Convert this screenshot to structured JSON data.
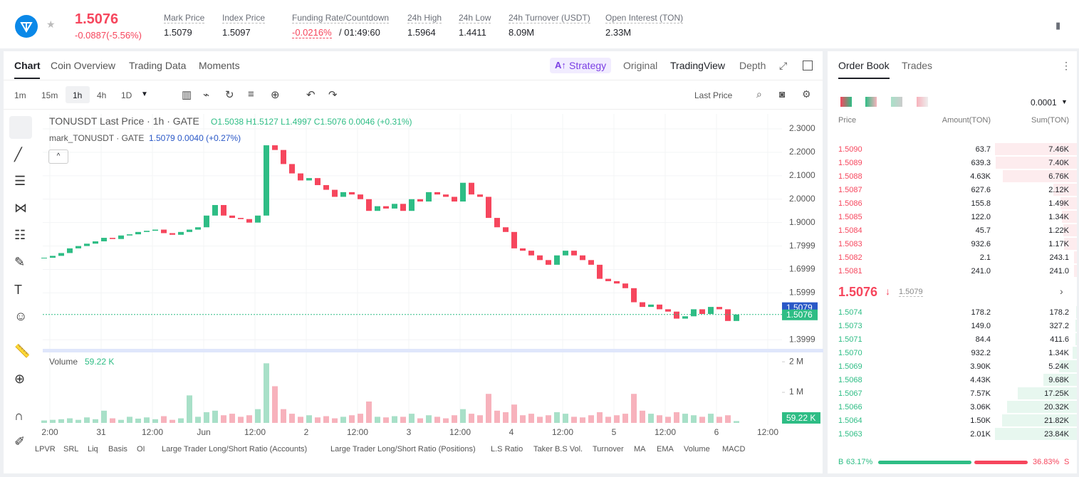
{
  "header": {
    "price": "1.5076",
    "change": "-0.0887(-5.56%)",
    "stats": [
      {
        "label": "Mark Price",
        "value": "1.5079"
      },
      {
        "label": "Index Price",
        "value": "1.5097"
      },
      {
        "label": "Funding Rate/Countdown",
        "value": "-0.0216%",
        "value2": "/ 01:49:60"
      },
      {
        "label": "24h High",
        "value": "1.5964"
      },
      {
        "label": "24h Low",
        "value": "1.4411"
      },
      {
        "label": "24h Turnover (USDT)",
        "value": "8.09M"
      },
      {
        "label": "Open Interest (TON)",
        "value": "2.33M"
      }
    ]
  },
  "tabs": [
    "Chart",
    "Coin Overview",
    "Trading Data",
    "Moments"
  ],
  "view_tabs": [
    "Strategy",
    "Original",
    "TradingView",
    "Depth"
  ],
  "intervals": [
    "1m",
    "15m",
    "1h",
    "4h",
    "1D"
  ],
  "price_source": "Last Price",
  "legend": {
    "main": "TONUSDT Last Price · 1h · GATE",
    "ohlc": "O1.5038 H1.5127 L1.4997 C1.5076 0.0046 (+0.31%)",
    "mark": "mark_TONUSDT · GATE",
    "mark_values": "1.5079 0.0040 (+0.27%)"
  },
  "chart_data": [
    {
      "type": "candlestick",
      "x_labels": [
        "2:00",
        "31",
        "12:00",
        "Jun",
        "12:00",
        "2",
        "12:00",
        "3",
        "12:00",
        "4",
        "12:00",
        "5",
        "12:00",
        "6",
        "12:00"
      ],
      "values": [
        1.75,
        1.758,
        1.77,
        1.79,
        1.8,
        1.81,
        1.82,
        1.835,
        1.83,
        1.845,
        1.85,
        1.86,
        1.865,
        1.87,
        1.855,
        1.848,
        1.86,
        1.87,
        1.88,
        1.93,
        1.975,
        1.93,
        1.92,
        1.915,
        1.9,
        1.93,
        2.23,
        2.21,
        2.15,
        2.11,
        2.08,
        2.09,
        2.06,
        2.04,
        2.01,
        2.03,
        2.02,
        2.0,
        1.95,
        1.97,
        1.96,
        1.98,
        1.95,
        2.0,
        1.99,
        2.03,
        2.02,
        2.01,
        1.99,
        2.07,
        2.02,
        2.01,
        1.92,
        1.88,
        1.86,
        1.79,
        1.78,
        1.76,
        1.74,
        1.72,
        1.76,
        1.78,
        1.76,
        1.74,
        1.72,
        1.66,
        1.65,
        1.64,
        1.62,
        1.56,
        1.54,
        1.55,
        1.53,
        1.52,
        1.49,
        1.5,
        1.53,
        1.51,
        1.54,
        1.53,
        1.48,
        1.5076
      ],
      "up_color": "#2ebd85",
      "down_color": "#f6465d",
      "ylim": [
        1.361,
        2.364
      ],
      "yticks": [
        {
          "value": 2.3,
          "label": "2.3000"
        },
        {
          "value": 2.2,
          "label": "2.2000"
        },
        {
          "value": 2.1,
          "label": "2.1000"
        },
        {
          "value": 2.0,
          "label": "2.0000"
        },
        {
          "value": 1.9,
          "label": "1.9000"
        },
        1.7999,
        1.6999,
        1.5999,
        1.3999
      ],
      "mark_price": 1.5079,
      "last_price": 1.5076
    },
    {
      "type": "bar",
      "title": "Volume",
      "volume_label": "59.22 K",
      "values": [
        0.08,
        0.1,
        0.12,
        0.15,
        0.1,
        0.18,
        0.12,
        0.4,
        0.15,
        0.1,
        0.2,
        0.14,
        0.18,
        0.12,
        0.22,
        0.1,
        0.15,
        0.9,
        0.2,
        0.35,
        0.4,
        0.25,
        0.3,
        0.2,
        0.25,
        0.45,
        1.95,
        1.2,
        0.45,
        0.3,
        0.2,
        0.25,
        0.18,
        0.22,
        0.15,
        0.2,
        0.25,
        0.3,
        0.7,
        0.2,
        0.18,
        0.22,
        0.2,
        0.3,
        0.15,
        0.25,
        0.2,
        0.15,
        0.25,
        0.45,
        0.3,
        0.25,
        0.95,
        0.4,
        0.35,
        0.6,
        0.25,
        0.3,
        0.2,
        0.25,
        0.35,
        0.3,
        0.2,
        0.18,
        0.25,
        0.35,
        0.2,
        0.25,
        0.3,
        0.95,
        0.4,
        0.3,
        0.25,
        0.2,
        0.35,
        0.3,
        0.25,
        0.2,
        0.3,
        0.2,
        0.25,
        0.05922
      ],
      "ylim": [
        0,
        2.19
      ],
      "yticks": [
        {
          "value": 2,
          "label": "2 M"
        },
        {
          "value": 1,
          "label": "1 M"
        }
      ]
    }
  ],
  "indicators": [
    "LPVR",
    "SRL",
    "Liq",
    "Basis",
    "OI",
    "Large Trader Long/Short Ratio (Accounts)",
    "Large Trader Long/Short Ratio (Positions)",
    "L.S Ratio",
    "Taker B.S Vol.",
    "Turnover",
    "MA",
    "EMA",
    "Volume",
    "MACD"
  ],
  "order_book": {
    "tabs": [
      "Order Book",
      "Trades"
    ],
    "precision": "0.0001",
    "headers": [
      "Price",
      "Amount(TON)",
      "Sum(TON)"
    ],
    "asks": [
      [
        "1.5090",
        "63.7",
        "7.46K"
      ],
      [
        "1.5089",
        "639.3",
        "7.40K"
      ],
      [
        "1.5088",
        "4.63K",
        "6.76K"
      ],
      [
        "1.5087",
        "627.6",
        "2.12K"
      ],
      [
        "1.5086",
        "155.8",
        "1.49K"
      ],
      [
        "1.5085",
        "122.0",
        "1.34K"
      ],
      [
        "1.5084",
        "45.7",
        "1.22K"
      ],
      [
        "1.5083",
        "932.6",
        "1.17K"
      ],
      [
        "1.5082",
        "2.1",
        "243.1"
      ],
      [
        "1.5081",
        "241.0",
        "241.0"
      ]
    ],
    "ask_depth": [
      7460,
      7400,
      6760,
      2120,
      1490,
      1340,
      1220,
      1170,
      243.1,
      241.0
    ],
    "last": "1.5076",
    "mark": "1.5079",
    "bids": [
      [
        "1.5074",
        "178.2",
        "178.2"
      ],
      [
        "1.5073",
        "149.0",
        "327.2"
      ],
      [
        "1.5071",
        "84.4",
        "411.6"
      ],
      [
        "1.5070",
        "932.2",
        "1.34K"
      ],
      [
        "1.5069",
        "3.90K",
        "5.24K"
      ],
      [
        "1.5068",
        "4.43K",
        "9.68K"
      ],
      [
        "1.5067",
        "7.57K",
        "17.25K"
      ],
      [
        "1.5066",
        "3.06K",
        "20.32K"
      ],
      [
        "1.5064",
        "1.50K",
        "21.82K"
      ],
      [
        "1.5063",
        "2.01K",
        "23.84K"
      ]
    ],
    "bid_depth": [
      178.2,
      327.2,
      411.6,
      1340,
      5240,
      9680,
      17250,
      20320,
      21820,
      23840
    ],
    "buy_pct": 63.17,
    "buy_label": "63.17%",
    "sell_pct": 36.83,
    "sell_label": "36.83%",
    "buy_side": "B",
    "sell_side": "S"
  }
}
